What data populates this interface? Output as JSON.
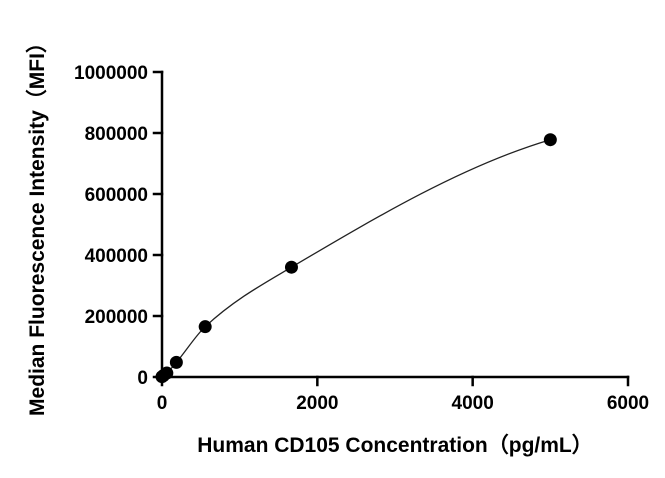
{
  "chart_data": {
    "type": "scatter",
    "title": "",
    "xlabel": "Human CD105 Concentration（pg/mL）",
    "ylabel": "Median Fluorescence Intensity（MFI）",
    "xlim": [
      0,
      6000
    ],
    "ylim": [
      0,
      1000000
    ],
    "x_ticks": [
      0,
      2000,
      4000,
      6000
    ],
    "x_tick_labels": [
      "0",
      "2000",
      "4000",
      "6000"
    ],
    "y_ticks": [
      0,
      200000,
      400000,
      600000,
      800000,
      1000000
    ],
    "y_tick_labels": [
      "0",
      "200000",
      "400000",
      "600000",
      "800000",
      "1000000"
    ],
    "grid": false,
    "legend": "none",
    "series": [
      {
        "points": [
          {
            "x": 0,
            "y": 1000
          },
          {
            "x": 20,
            "y": 5000
          },
          {
            "x": 62,
            "y": 13000
          },
          {
            "x": 185,
            "y": 48000
          },
          {
            "x": 556,
            "y": 165000
          },
          {
            "x": 1667,
            "y": 360000
          },
          {
            "x": 5000,
            "y": 778000
          }
        ],
        "fit": "four-parameter logistic",
        "color": "#000000"
      }
    ]
  }
}
